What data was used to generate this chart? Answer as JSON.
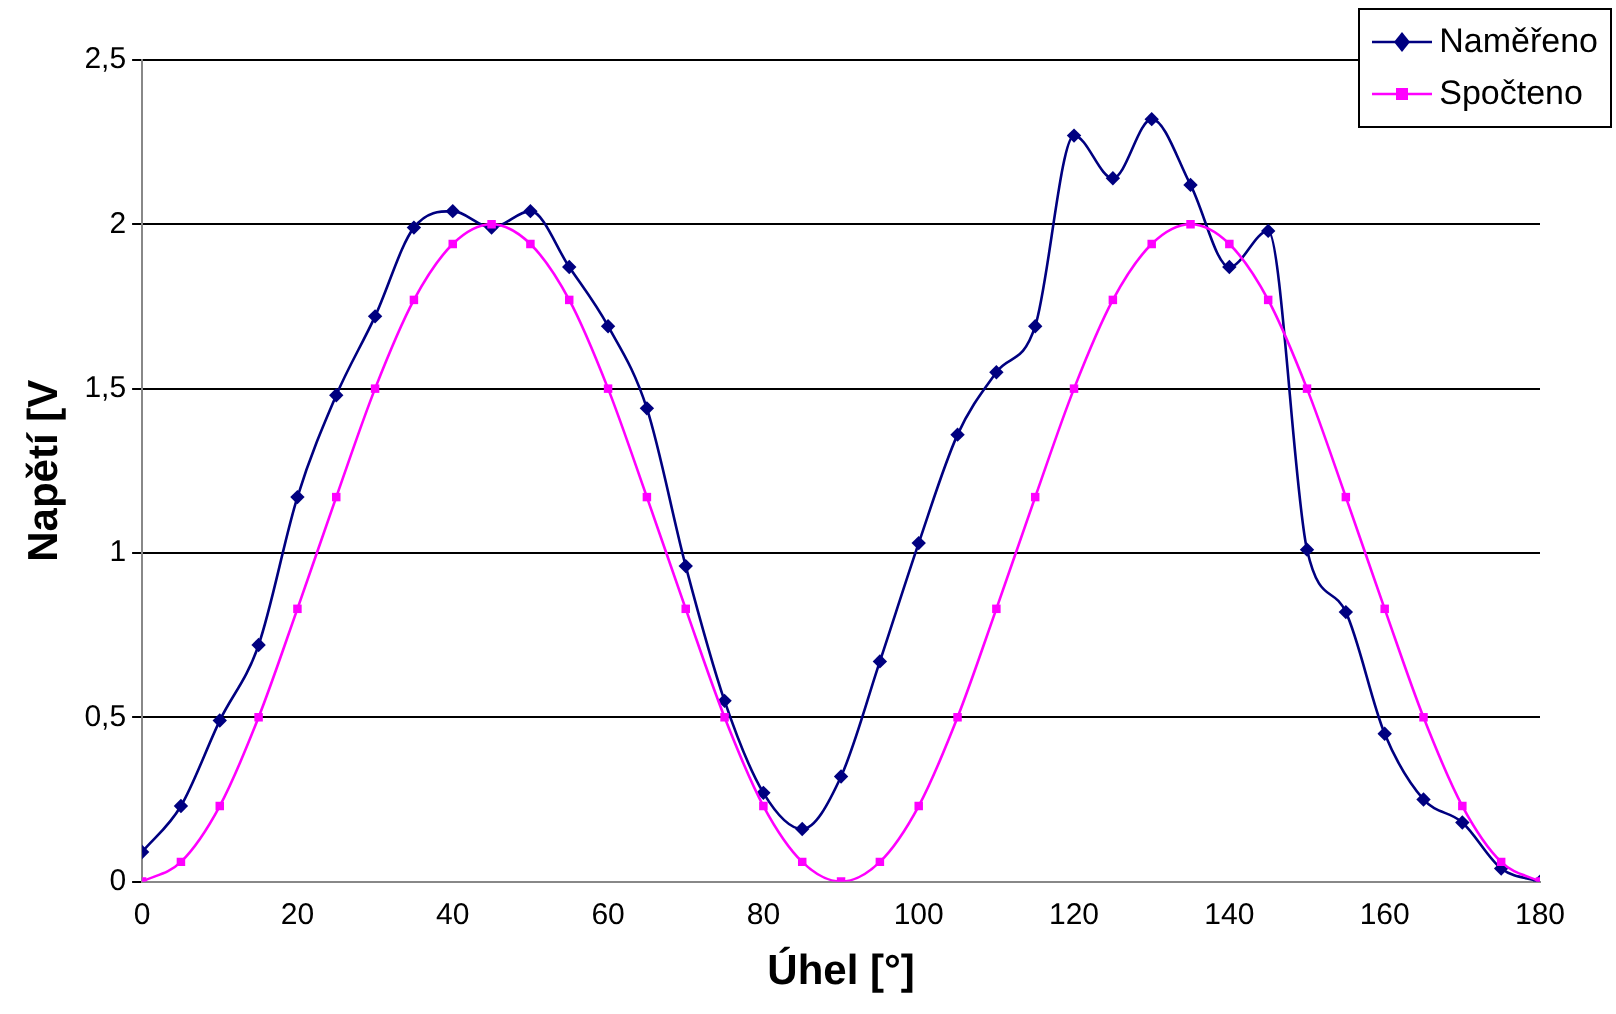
{
  "chart_data": {
    "type": "line",
    "xlabel": "Úhel [°]",
    "ylabel": "Napětí [V",
    "x": [
      0,
      5,
      10,
      15,
      20,
      25,
      30,
      35,
      40,
      45,
      50,
      55,
      60,
      65,
      70,
      75,
      80,
      85,
      90,
      95,
      100,
      105,
      110,
      115,
      120,
      125,
      130,
      135,
      140,
      145,
      150,
      155,
      160,
      165,
      170,
      175,
      180
    ],
    "series": [
      {
        "name": "Naměřeno",
        "color": "#000080",
        "marker": "diamond",
        "values": [
          0.09,
          0.23,
          0.49,
          0.72,
          1.17,
          1.48,
          1.72,
          1.99,
          2.04,
          1.99,
          2.04,
          1.87,
          1.69,
          1.44,
          0.96,
          0.55,
          0.27,
          0.16,
          0.32,
          0.67,
          1.03,
          1.36,
          1.55,
          1.69,
          2.27,
          2.14,
          2.32,
          2.12,
          1.87,
          1.98,
          1.01,
          0.82,
          0.45,
          0.25,
          0.18,
          0.04,
          0
        ]
      },
      {
        "name": "Spočteno",
        "color": "#ff00ff",
        "marker": "square",
        "values": [
          0,
          0.06,
          0.23,
          0.5,
          0.83,
          1.17,
          1.5,
          1.77,
          1.94,
          2,
          1.94,
          1.77,
          1.5,
          1.17,
          0.83,
          0.5,
          0.23,
          0.06,
          0,
          0.06,
          0.23,
          0.5,
          0.83,
          1.17,
          1.5,
          1.77,
          1.94,
          2,
          1.94,
          1.77,
          1.5,
          1.17,
          0.83,
          0.5,
          0.23,
          0.06,
          0
        ]
      }
    ],
    "xlim": [
      0,
      180
    ],
    "xticks": [
      0,
      20,
      40,
      60,
      80,
      100,
      120,
      140,
      160,
      180
    ],
    "ylim": [
      0,
      2.5
    ],
    "yticks": [
      0,
      {
        "value": 0.5,
        "label": "0,5"
      },
      1,
      {
        "value": 1.5,
        "label": "1,5"
      },
      2,
      {
        "value": 2.5,
        "label": "2,5"
      }
    ],
    "grid": "y",
    "legend": "top right",
    "line_style": "solid"
  }
}
